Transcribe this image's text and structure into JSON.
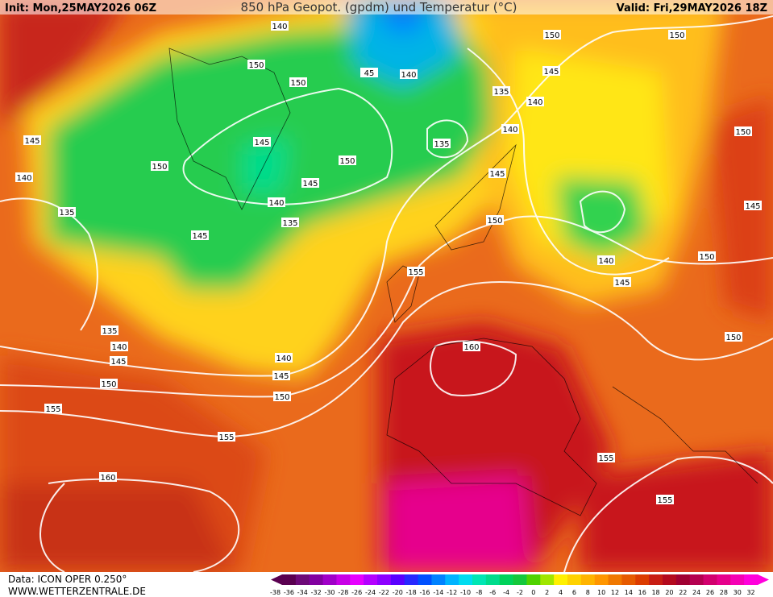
{
  "header": {
    "init": "Init: Mon,25MAY2026 06Z",
    "title": "850 hPa Geopot. (gpdm) und Temperatur (°C)",
    "valid": "Valid: Fri,29MAY2026 18Z"
  },
  "footer": {
    "data": "Data: ICON OPER 0.250°",
    "site": "WWW.WETTERZENTRALE.DE"
  },
  "colorbar": {
    "labels": [
      -38,
      -36,
      -34,
      -32,
      -30,
      -28,
      -26,
      -24,
      -22,
      -20,
      -18,
      -16,
      -14,
      -12,
      -10,
      -8,
      -6,
      -4,
      -2,
      0,
      2,
      4,
      6,
      8,
      10,
      12,
      14,
      16,
      18,
      20,
      22,
      24,
      26,
      28,
      30,
      32
    ],
    "colors": [
      "#5a0050",
      "#6e0a78",
      "#8200a0",
      "#a000c8",
      "#c800e6",
      "#e600ff",
      "#b400ff",
      "#8c00ff",
      "#5a00ff",
      "#2828ff",
      "#0050ff",
      "#0082ff",
      "#00b4ff",
      "#00dcf0",
      "#00e6b4",
      "#00dc8c",
      "#00d25a",
      "#14c83c",
      "#50d200",
      "#a0e600",
      "#fff000",
      "#ffd200",
      "#ffb400",
      "#ff9600",
      "#f07800",
      "#e65a00",
      "#dc3c00",
      "#c81e14",
      "#b40a1e",
      "#a00032",
      "#b40050",
      "#d2006e",
      "#e6008c",
      "#f500b4",
      "#ff00dc"
    ]
  },
  "contour_labels": [
    "140",
    "150",
    "150",
    "45",
    "140",
    "150",
    "150",
    "145",
    "135",
    "140",
    "140",
    "135",
    "150",
    "145",
    "145",
    "150",
    "150",
    "140",
    "145",
    "145",
    "140",
    "145",
    "135",
    "135",
    "150",
    "145",
    "140",
    "150",
    "155",
    "145",
    "135",
    "140",
    "150",
    "140",
    "145",
    "160",
    "145",
    "150",
    "150",
    "155",
    "155",
    "155",
    "160",
    "155"
  ]
}
